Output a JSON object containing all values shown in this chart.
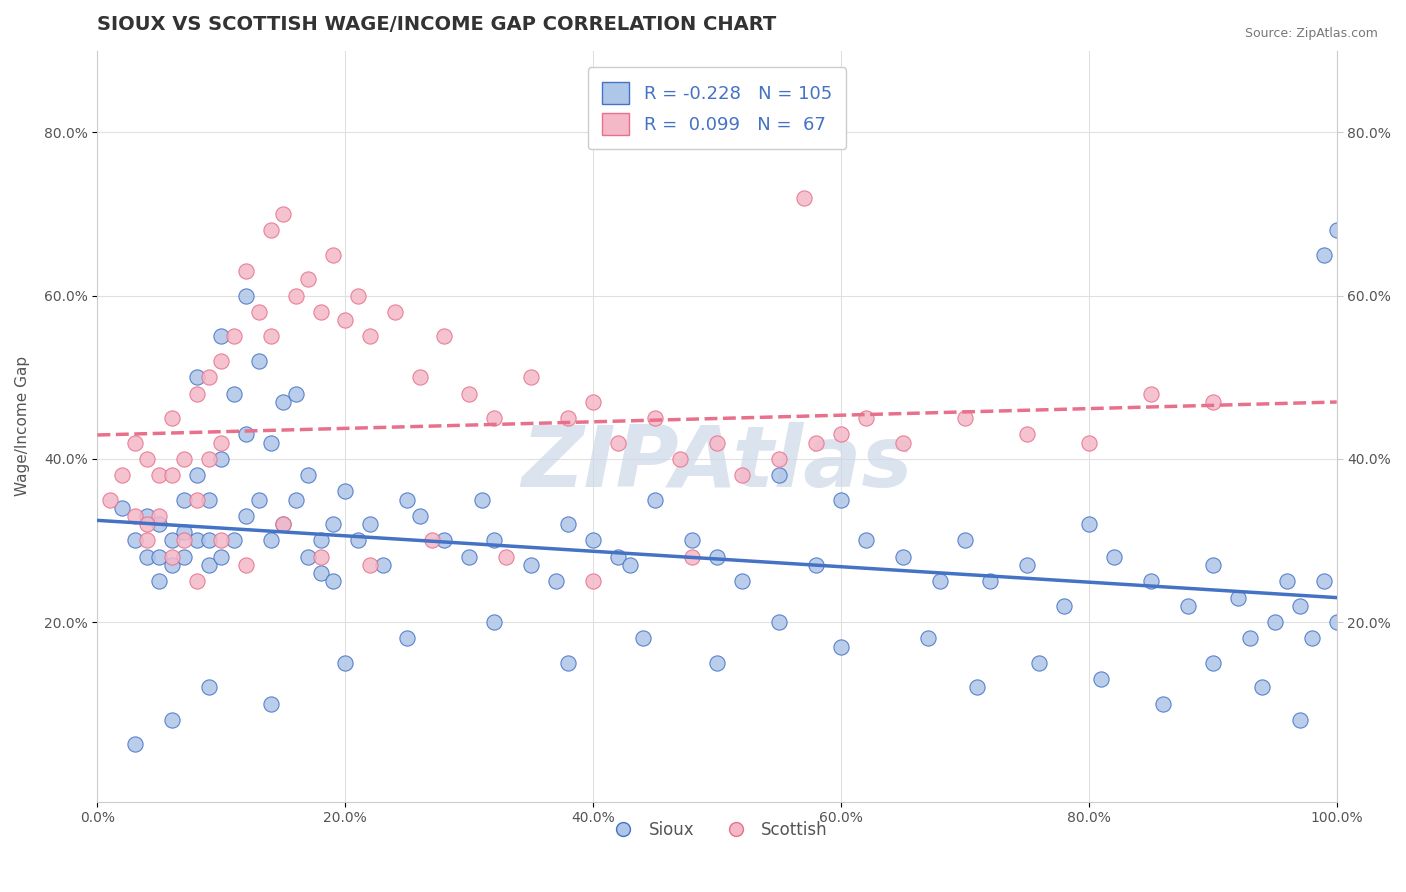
{
  "title": "SIOUX VS SCOTTISH WAGE/INCOME GAP CORRELATION CHART",
  "source_text": "Source: ZipAtlas.com",
  "xlabel": "",
  "ylabel": "Wage/Income Gap",
  "xlim": [
    0.0,
    1.0
  ],
  "ylim": [
    -0.02,
    0.9
  ],
  "xticks": [
    0.0,
    0.2,
    0.4,
    0.6,
    0.8,
    1.0
  ],
  "xtick_labels": [
    "0.0%",
    "20.0%",
    "40.0%",
    "60.0%",
    "80.0%",
    "100.0%"
  ],
  "ytick_positions": [
    0.2,
    0.4,
    0.6,
    0.8
  ],
  "ytick_labels": [
    "20.0%",
    "40.0%",
    "60.0%",
    "80.0%"
  ],
  "sioux_face_color": "#aec6e8",
  "scottish_face_color": "#f4b8c8",
  "sioux_edge_color": "#4472c4",
  "scottish_edge_color": "#e8708a",
  "sioux_line_color": "#4472c4",
  "scottish_line_color": "#e8708a",
  "sioux_R": -0.228,
  "sioux_N": 105,
  "scottish_R": 0.099,
  "scottish_N": 67,
  "legend_text_color": "#4472c4",
  "title_fontsize": 14,
  "axis_label_fontsize": 11,
  "tick_fontsize": 10,
  "watermark_text": "ZIPAtlas",
  "watermark_color": "#ccd8e8",
  "background_color": "#ffffff",
  "grid_color": "#e0e0e0",
  "sioux_scatter_x": [
    0.02,
    0.03,
    0.04,
    0.04,
    0.05,
    0.05,
    0.05,
    0.06,
    0.06,
    0.07,
    0.07,
    0.07,
    0.08,
    0.08,
    0.08,
    0.09,
    0.09,
    0.09,
    0.1,
    0.1,
    0.1,
    0.11,
    0.11,
    0.12,
    0.12,
    0.12,
    0.13,
    0.13,
    0.14,
    0.14,
    0.15,
    0.15,
    0.16,
    0.16,
    0.17,
    0.17,
    0.18,
    0.18,
    0.19,
    0.19,
    0.2,
    0.21,
    0.22,
    0.23,
    0.25,
    0.26,
    0.28,
    0.3,
    0.31,
    0.32,
    0.35,
    0.37,
    0.38,
    0.4,
    0.42,
    0.43,
    0.45,
    0.48,
    0.5,
    0.52,
    0.55,
    0.58,
    0.6,
    0.62,
    0.65,
    0.68,
    0.7,
    0.72,
    0.75,
    0.78,
    0.8,
    0.82,
    0.85,
    0.88,
    0.9,
    0.92,
    0.93,
    0.95,
    0.96,
    0.97,
    0.98,
    0.99,
    1.0,
    0.03,
    0.06,
    0.09,
    0.14,
    0.2,
    0.25,
    0.32,
    0.38,
    0.44,
    0.5,
    0.55,
    0.6,
    0.67,
    0.71,
    0.76,
    0.81,
    0.86,
    0.9,
    0.94,
    0.97,
    0.99,
    1.0
  ],
  "sioux_scatter_y": [
    0.34,
    0.3,
    0.28,
    0.33,
    0.32,
    0.28,
    0.25,
    0.3,
    0.27,
    0.35,
    0.31,
    0.28,
    0.5,
    0.38,
    0.3,
    0.35,
    0.3,
    0.27,
    0.55,
    0.4,
    0.28,
    0.48,
    0.3,
    0.6,
    0.43,
    0.33,
    0.52,
    0.35,
    0.42,
    0.3,
    0.47,
    0.32,
    0.48,
    0.35,
    0.38,
    0.28,
    0.3,
    0.26,
    0.32,
    0.25,
    0.36,
    0.3,
    0.32,
    0.27,
    0.35,
    0.33,
    0.3,
    0.28,
    0.35,
    0.3,
    0.27,
    0.25,
    0.32,
    0.3,
    0.28,
    0.27,
    0.35,
    0.3,
    0.28,
    0.25,
    0.38,
    0.27,
    0.35,
    0.3,
    0.28,
    0.25,
    0.3,
    0.25,
    0.27,
    0.22,
    0.32,
    0.28,
    0.25,
    0.22,
    0.27,
    0.23,
    0.18,
    0.2,
    0.25,
    0.22,
    0.18,
    0.25,
    0.2,
    0.05,
    0.08,
    0.12,
    0.1,
    0.15,
    0.18,
    0.2,
    0.15,
    0.18,
    0.15,
    0.2,
    0.17,
    0.18,
    0.12,
    0.15,
    0.13,
    0.1,
    0.15,
    0.12,
    0.08,
    0.65,
    0.68
  ],
  "scottish_scatter_x": [
    0.01,
    0.02,
    0.03,
    0.03,
    0.04,
    0.04,
    0.05,
    0.05,
    0.06,
    0.06,
    0.07,
    0.07,
    0.08,
    0.08,
    0.09,
    0.09,
    0.1,
    0.1,
    0.11,
    0.12,
    0.13,
    0.14,
    0.14,
    0.15,
    0.16,
    0.17,
    0.18,
    0.19,
    0.2,
    0.21,
    0.22,
    0.24,
    0.26,
    0.28,
    0.3,
    0.32,
    0.35,
    0.38,
    0.4,
    0.42,
    0.45,
    0.47,
    0.5,
    0.52,
    0.55,
    0.58,
    0.6,
    0.62,
    0.65,
    0.7,
    0.75,
    0.8,
    0.85,
    0.9,
    0.04,
    0.06,
    0.08,
    0.1,
    0.12,
    0.15,
    0.18,
    0.22,
    0.27,
    0.33,
    0.4,
    0.48,
    0.57
  ],
  "scottish_scatter_y": [
    0.35,
    0.38,
    0.42,
    0.33,
    0.4,
    0.3,
    0.38,
    0.33,
    0.45,
    0.38,
    0.4,
    0.3,
    0.48,
    0.35,
    0.5,
    0.4,
    0.52,
    0.42,
    0.55,
    0.63,
    0.58,
    0.68,
    0.55,
    0.7,
    0.6,
    0.62,
    0.58,
    0.65,
    0.57,
    0.6,
    0.55,
    0.58,
    0.5,
    0.55,
    0.48,
    0.45,
    0.5,
    0.45,
    0.47,
    0.42,
    0.45,
    0.4,
    0.42,
    0.38,
    0.4,
    0.42,
    0.43,
    0.45,
    0.42,
    0.45,
    0.43,
    0.42,
    0.48,
    0.47,
    0.32,
    0.28,
    0.25,
    0.3,
    0.27,
    0.32,
    0.28,
    0.27,
    0.3,
    0.28,
    0.25,
    0.28,
    0.72
  ]
}
